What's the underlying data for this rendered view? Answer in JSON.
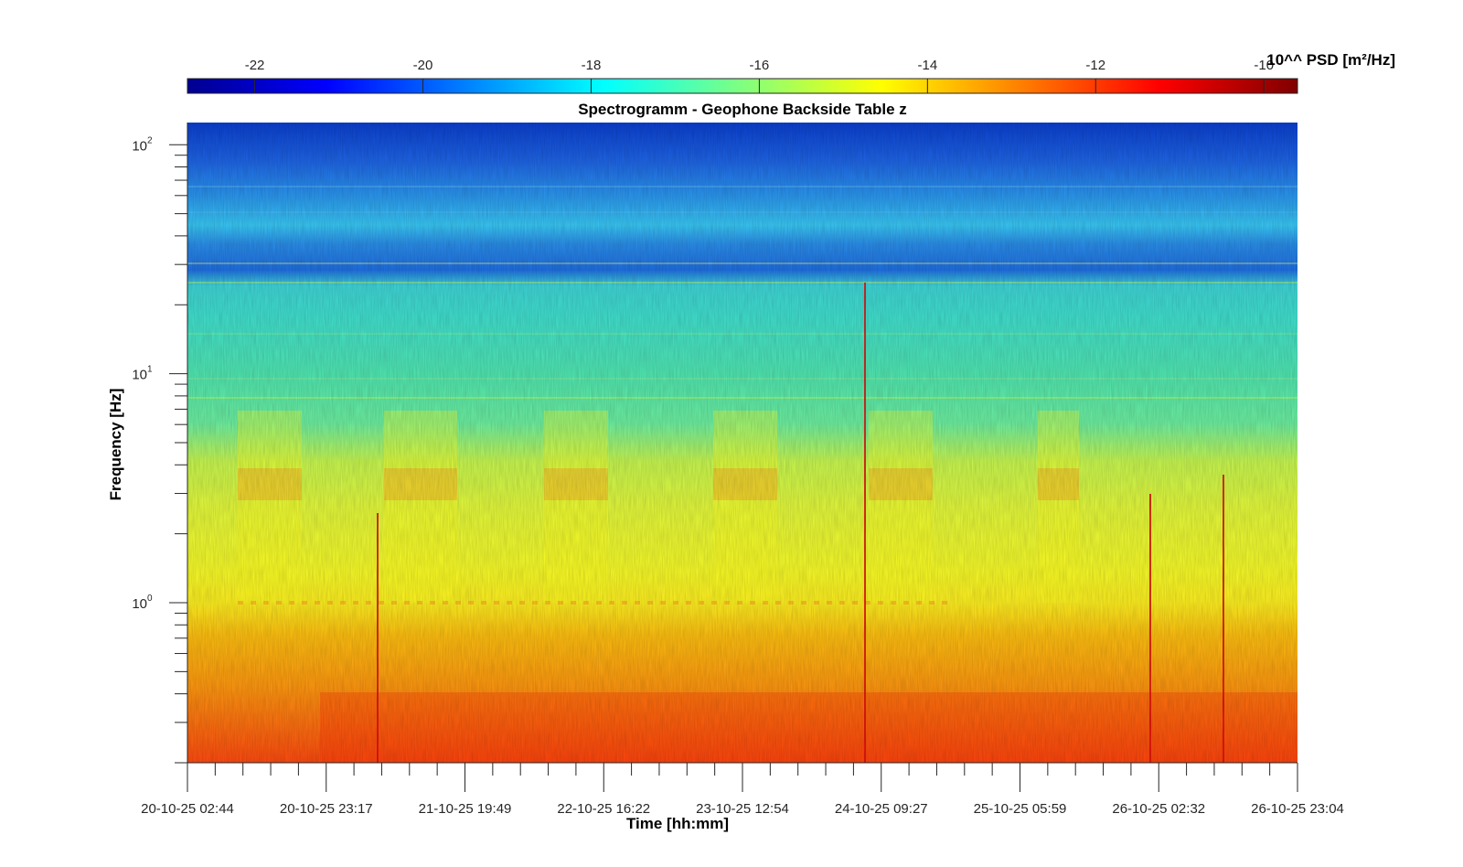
{
  "chart_data": {
    "type": "heatmap",
    "title": "Spectrogramm - Geophone Backside Table z",
    "xlabel": "Time [hh:mm]",
    "ylabel": "Frequency [Hz]",
    "y_scale": "log",
    "ylim": [
      0.2,
      125
    ],
    "x_ticks": [
      "20-10-25 02:44",
      "20-10-25 23:17",
      "21-10-25 19:49",
      "22-10-25 16:22",
      "23-10-25 12:54",
      "24-10-25 09:27",
      "25-10-25 05:59",
      "26-10-25 02:32",
      "26-10-25 23:04"
    ],
    "y_ticks": [
      {
        "base": "10",
        "exp": "0",
        "value": 1
      },
      {
        "base": "10",
        "exp": "1",
        "value": 10
      },
      {
        "base": "10",
        "exp": "2",
        "value": 100
      }
    ],
    "colorbar": {
      "label": "10^^ PSD [m²/Hz]",
      "colormap": "jet",
      "range": [
        -22.8,
        -9.6
      ],
      "ticks": [
        "-22",
        "-20",
        "-18",
        "-16",
        "-14",
        "-12",
        "-10"
      ],
      "tick_values": [
        -22,
        -20,
        -18,
        -16,
        -14,
        -12,
        -10
      ]
    },
    "colors": {
      "high_freq_band": "#1e64e6",
      "mid_band": "#28d2f0",
      "low_band": "#ffff28",
      "lowest_band": "#ff5014"
    }
  }
}
